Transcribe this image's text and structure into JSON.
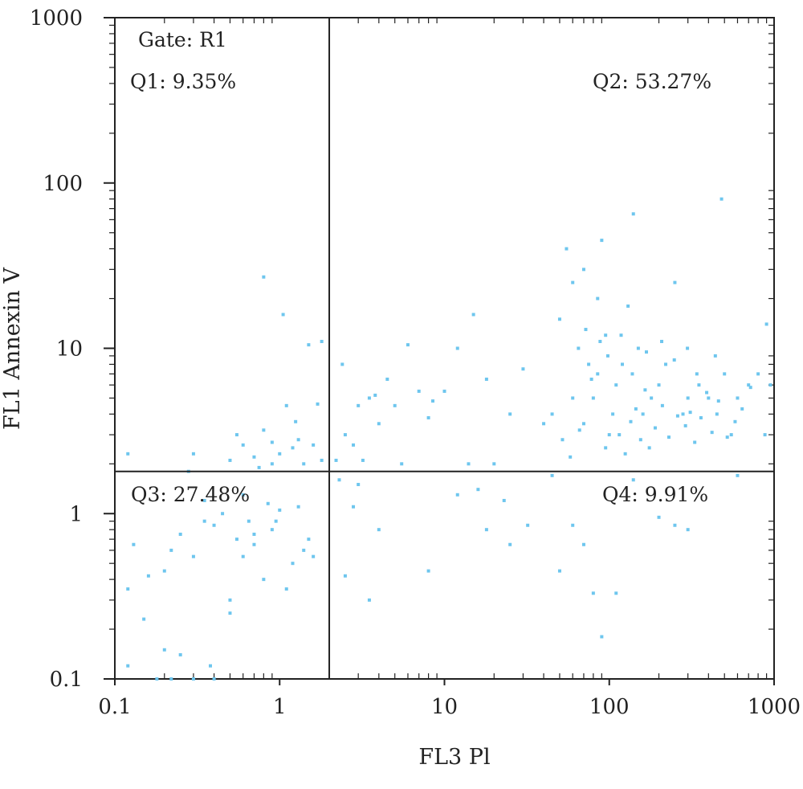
{
  "chart_data": {
    "type": "scatter",
    "x_scale": "log",
    "y_scale": "log",
    "xlim": [
      0.1,
      1000
    ],
    "ylim": [
      0.1,
      1000
    ],
    "xlabel": "FL3 Pl",
    "ylabel": "FL1 Annexin V",
    "x_tick_labels": [
      "0.1",
      "1",
      "10",
      "100",
      "1000"
    ],
    "y_tick_labels": [
      "0.1",
      "1",
      "10",
      "100",
      "1000"
    ],
    "x_ticks": [
      0.1,
      1,
      10,
      100,
      1000
    ],
    "y_ticks": [
      0.1,
      1,
      10,
      100,
      1000
    ],
    "gate_label": "Gate: R1",
    "quadrants": {
      "q1": "Q1: 9.35%",
      "q2": "Q2: 53.27%",
      "q3": "Q3: 27.48%",
      "q4": "Q4: 9.91%"
    },
    "gate_x": 2.0,
    "gate_y": 1.8,
    "grid": false,
    "point_color": "#6ec6ee",
    "points": [
      [
        0.12,
        0.35
      ],
      [
        0.13,
        0.65
      ],
      [
        0.15,
        0.23
      ],
      [
        0.2,
        0.45
      ],
      [
        0.22,
        0.6
      ],
      [
        0.2,
        0.15
      ],
      [
        0.25,
        0.75
      ],
      [
        0.3,
        0.55
      ],
      [
        0.35,
        0.9
      ],
      [
        0.4,
        0.85
      ],
      [
        0.45,
        1.0
      ],
      [
        0.5,
        0.3
      ],
      [
        0.55,
        0.7
      ],
      [
        0.6,
        0.55
      ],
      [
        0.65,
        0.9
      ],
      [
        0.7,
        0.65
      ],
      [
        0.8,
        0.4
      ],
      [
        0.9,
        0.8
      ],
      [
        1.0,
        1.05
      ],
      [
        1.2,
        0.5
      ],
      [
        1.4,
        0.6
      ],
      [
        1.6,
        0.55
      ],
      [
        1.1,
        0.35
      ],
      [
        0.35,
        1.2
      ],
      [
        0.6,
        1.3
      ],
      [
        0.28,
        1.8
      ],
      [
        0.85,
        1.15
      ],
      [
        0.5,
        0.25
      ],
      [
        0.38,
        0.12
      ],
      [
        0.25,
        0.14
      ],
      [
        0.18,
        0.1
      ],
      [
        0.22,
        0.1
      ],
      [
        0.3,
        0.1
      ],
      [
        0.4,
        0.1
      ],
      [
        0.12,
        0.12
      ],
      [
        0.16,
        0.42
      ],
      [
        1.3,
        1.1
      ],
      [
        0.7,
        0.75
      ],
      [
        0.95,
        0.9
      ],
      [
        1.5,
        0.7
      ],
      [
        0.3,
        2.3
      ],
      [
        0.5,
        2.1
      ],
      [
        0.6,
        2.6
      ],
      [
        0.7,
        2.2
      ],
      [
        0.8,
        3.2
      ],
      [
        0.9,
        2.7
      ],
      [
        1.0,
        2.3
      ],
      [
        1.2,
        2.5
      ],
      [
        1.4,
        2.0
      ],
      [
        1.6,
        2.6
      ],
      [
        1.8,
        2.1
      ],
      [
        0.9,
        2.0
      ],
      [
        0.55,
        3.0
      ],
      [
        1.1,
        4.5
      ],
      [
        1.3,
        2.8
      ],
      [
        0.75,
        1.9
      ],
      [
        1.5,
        10.5
      ],
      [
        1.8,
        11
      ],
      [
        0.8,
        27
      ],
      [
        1.05,
        16
      ],
      [
        0.12,
        2.3
      ],
      [
        1.7,
        4.6
      ],
      [
        1.25,
        3.6
      ],
      [
        2.2,
        2.1
      ],
      [
        2.5,
        3.0
      ],
      [
        2.8,
        2.6
      ],
      [
        3.0,
        4.5
      ],
      [
        3.5,
        5.0
      ],
      [
        4.0,
        3.5
      ],
      [
        4.5,
        6.5
      ],
      [
        5.0,
        4.5
      ],
      [
        6.0,
        10.5
      ],
      [
        7.0,
        5.5
      ],
      [
        8.0,
        3.8
      ],
      [
        10,
        5.5
      ],
      [
        12,
        10
      ],
      [
        15,
        16
      ],
      [
        18,
        6.5
      ],
      [
        20,
        2.0
      ],
      [
        25,
        4.0
      ],
      [
        30,
        7.5
      ],
      [
        40,
        3.5
      ],
      [
        2.4,
        8.0
      ],
      [
        3.2,
        2.1
      ],
      [
        3.8,
        5.2
      ],
      [
        5.5,
        2.0
      ],
      [
        8.5,
        4.8
      ],
      [
        14,
        2.0
      ],
      [
        50,
        15
      ],
      [
        55,
        40
      ],
      [
        60,
        25
      ],
      [
        65,
        10
      ],
      [
        70,
        30
      ],
      [
        75,
        8
      ],
      [
        80,
        5
      ],
      [
        85,
        20
      ],
      [
        90,
        45
      ],
      [
        95,
        12
      ],
      [
        100,
        3
      ],
      [
        110,
        6
      ],
      [
        120,
        8
      ],
      [
        130,
        18
      ],
      [
        140,
        65
      ],
      [
        150,
        10
      ],
      [
        160,
        4
      ],
      [
        180,
        5
      ],
      [
        200,
        6
      ],
      [
        220,
        8
      ],
      [
        250,
        25
      ],
      [
        280,
        4
      ],
      [
        300,
        5
      ],
      [
        350,
        6
      ],
      [
        400,
        5
      ],
      [
        450,
        4
      ],
      [
        500,
        7
      ],
      [
        550,
        3
      ],
      [
        600,
        5
      ],
      [
        700,
        6
      ],
      [
        800,
        7
      ],
      [
        900,
        14
      ],
      [
        950,
        6
      ],
      [
        60,
        5
      ],
      [
        70,
        3.5
      ],
      [
        85,
        7
      ],
      [
        95,
        2.5
      ],
      [
        105,
        4
      ],
      [
        115,
        3
      ],
      [
        125,
        2.3
      ],
      [
        135,
        3.6
      ],
      [
        145,
        4.3
      ],
      [
        155,
        2.8
      ],
      [
        165,
        5.6
      ],
      [
        175,
        2.5
      ],
      [
        190,
        3.3
      ],
      [
        210,
        4.5
      ],
      [
        230,
        2.9
      ],
      [
        260,
        3.9
      ],
      [
        290,
        3.4
      ],
      [
        310,
        4.1
      ],
      [
        330,
        2.7
      ],
      [
        360,
        3.8
      ],
      [
        390,
        5.4
      ],
      [
        420,
        3.1
      ],
      [
        460,
        4.8
      ],
      [
        520,
        2.9
      ],
      [
        580,
        3.6
      ],
      [
        640,
        4.3
      ],
      [
        720,
        5.8
      ],
      [
        880,
        3.0
      ],
      [
        58,
        2.2
      ],
      [
        78,
        6.5
      ],
      [
        98,
        9
      ],
      [
        118,
        12
      ],
      [
        138,
        7
      ],
      [
        168,
        9.5
      ],
      [
        208,
        11
      ],
      [
        248,
        8.5
      ],
      [
        298,
        10
      ],
      [
        340,
        7
      ],
      [
        440,
        9
      ],
      [
        480,
        80
      ],
      [
        45,
        4.0
      ],
      [
        52,
        2.8
      ],
      [
        66,
        3.2
      ],
      [
        72,
        13
      ],
      [
        88,
        11
      ],
      [
        3.0,
        1.5
      ],
      [
        4.0,
        0.8
      ],
      [
        8.0,
        0.45
      ],
      [
        12,
        1.3
      ],
      [
        18,
        0.8
      ],
      [
        25,
        0.65
      ],
      [
        50,
        0.45
      ],
      [
        60,
        0.85
      ],
      [
        80,
        0.33
      ],
      [
        90,
        0.18
      ],
      [
        110,
        0.33
      ],
      [
        200,
        0.95
      ],
      [
        250,
        0.85
      ],
      [
        300,
        0.8
      ],
      [
        600,
        1.7
      ],
      [
        3.5,
        0.3
      ],
      [
        2.3,
        1.6
      ],
      [
        2.8,
        1.1
      ],
      [
        70,
        0.65
      ],
      [
        16,
        1.4
      ],
      [
        32,
        0.85
      ],
      [
        45,
        1.7
      ],
      [
        140,
        1.6
      ],
      [
        2.5,
        0.42
      ],
      [
        23,
        1.2
      ]
    ]
  }
}
